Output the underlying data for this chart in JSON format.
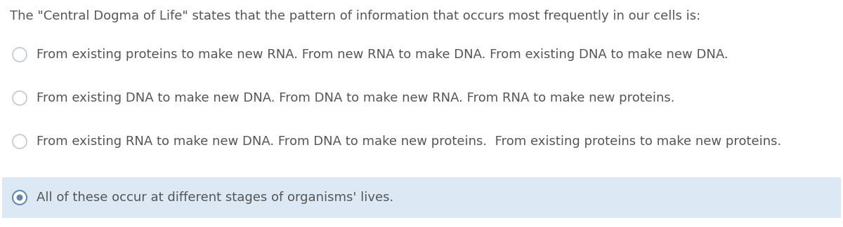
{
  "background_color": "#ffffff",
  "question": "The \"Central Dogma of Life\" states that the pattern of information that occurs most frequently in our cells is:",
  "options": [
    "From existing proteins to make new RNA. From new RNA to make DNA. From existing DNA to make new DNA.",
    "From existing DNA to make new DNA. From DNA to make new RNA. From RNA to make new proteins.",
    "From existing RNA to make new DNA. From DNA to make new proteins.  From existing proteins to make new proteins.",
    "All of these occur at different stages of organisms' lives."
  ],
  "selected_index": 3,
  "selected_bg_color": "#dce9f5",
  "unselected_bg_color": "#ffffff",
  "question_fontsize": 13.0,
  "option_fontsize": 13.0,
  "text_color": "#555555",
  "circle_edge_color": "#c0c8d0",
  "circle_fill_color": "#ffffff",
  "selected_circle_outer": "#6688aa",
  "selected_circle_inner": "#6688aa",
  "figsize": [
    12.0,
    3.24
  ],
  "dpi": 100
}
